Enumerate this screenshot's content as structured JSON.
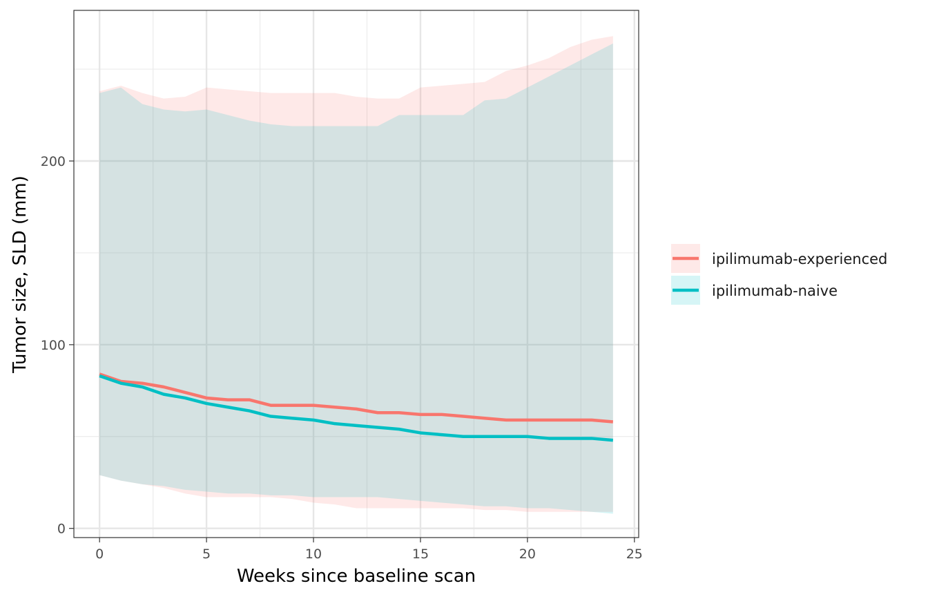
{
  "chart_data": {
    "type": "line",
    "xlabel": "Weeks since baseline scan",
    "ylabel": "Tumor size, SLD (mm)",
    "xlim": [
      -1.2,
      25.2
    ],
    "ylim": [
      -5,
      282
    ],
    "x_ticks": [
      0,
      5,
      10,
      15,
      20,
      25
    ],
    "y_ticks": [
      0,
      100,
      200
    ],
    "x_ticks_minor": [
      2.5,
      7.5,
      12.5,
      17.5,
      22.5
    ],
    "y_ticks_minor": [
      50,
      150,
      250
    ],
    "grid": true,
    "legend_position": "right",
    "x": [
      0,
      1,
      2,
      3,
      4,
      5,
      6,
      7,
      8,
      9,
      10,
      11,
      12,
      13,
      14,
      15,
      16,
      17,
      18,
      19,
      20,
      21,
      22,
      23,
      24
    ],
    "series": [
      {
        "name": "ipilimumab-experienced",
        "color": "#F8766D",
        "values": [
          84,
          80,
          79,
          77,
          74,
          71,
          70,
          70,
          67,
          67,
          67,
          66,
          65,
          63,
          63,
          62,
          62,
          61,
          60,
          59,
          59,
          59,
          59,
          59,
          58
        ],
        "band_upper": [
          238,
          241,
          237,
          234,
          235,
          240,
          239,
          238,
          237,
          237,
          237,
          237,
          235,
          234,
          234,
          240,
          241,
          242,
          243,
          249,
          252,
          256,
          262,
          266,
          268
        ],
        "band_lower": [
          29,
          26,
          24,
          22,
          19,
          17,
          17,
          17,
          17,
          16,
          14,
          13,
          11,
          11,
          11,
          11,
          11,
          11,
          10,
          10,
          9,
          9,
          9,
          9,
          9
        ]
      },
      {
        "name": "ipilimumab-naive",
        "color": "#00BFC4",
        "values": [
          83,
          79,
          77,
          73,
          71,
          68,
          66,
          64,
          61,
          60,
          59,
          57,
          56,
          55,
          54,
          52,
          51,
          50,
          50,
          50,
          50,
          49,
          49,
          49,
          48
        ],
        "band_upper": [
          237,
          240,
          231,
          228,
          227,
          228,
          225,
          222,
          220,
          219,
          219,
          219,
          219,
          219,
          225,
          225,
          225,
          225,
          233,
          234,
          240,
          246,
          252,
          258,
          264
        ],
        "band_lower": [
          29,
          26,
          24,
          23,
          21,
          20,
          19,
          19,
          18,
          18,
          17,
          17,
          17,
          17,
          16,
          15,
          14,
          13,
          12,
          12,
          11,
          11,
          10,
          9,
          8
        ]
      }
    ]
  }
}
